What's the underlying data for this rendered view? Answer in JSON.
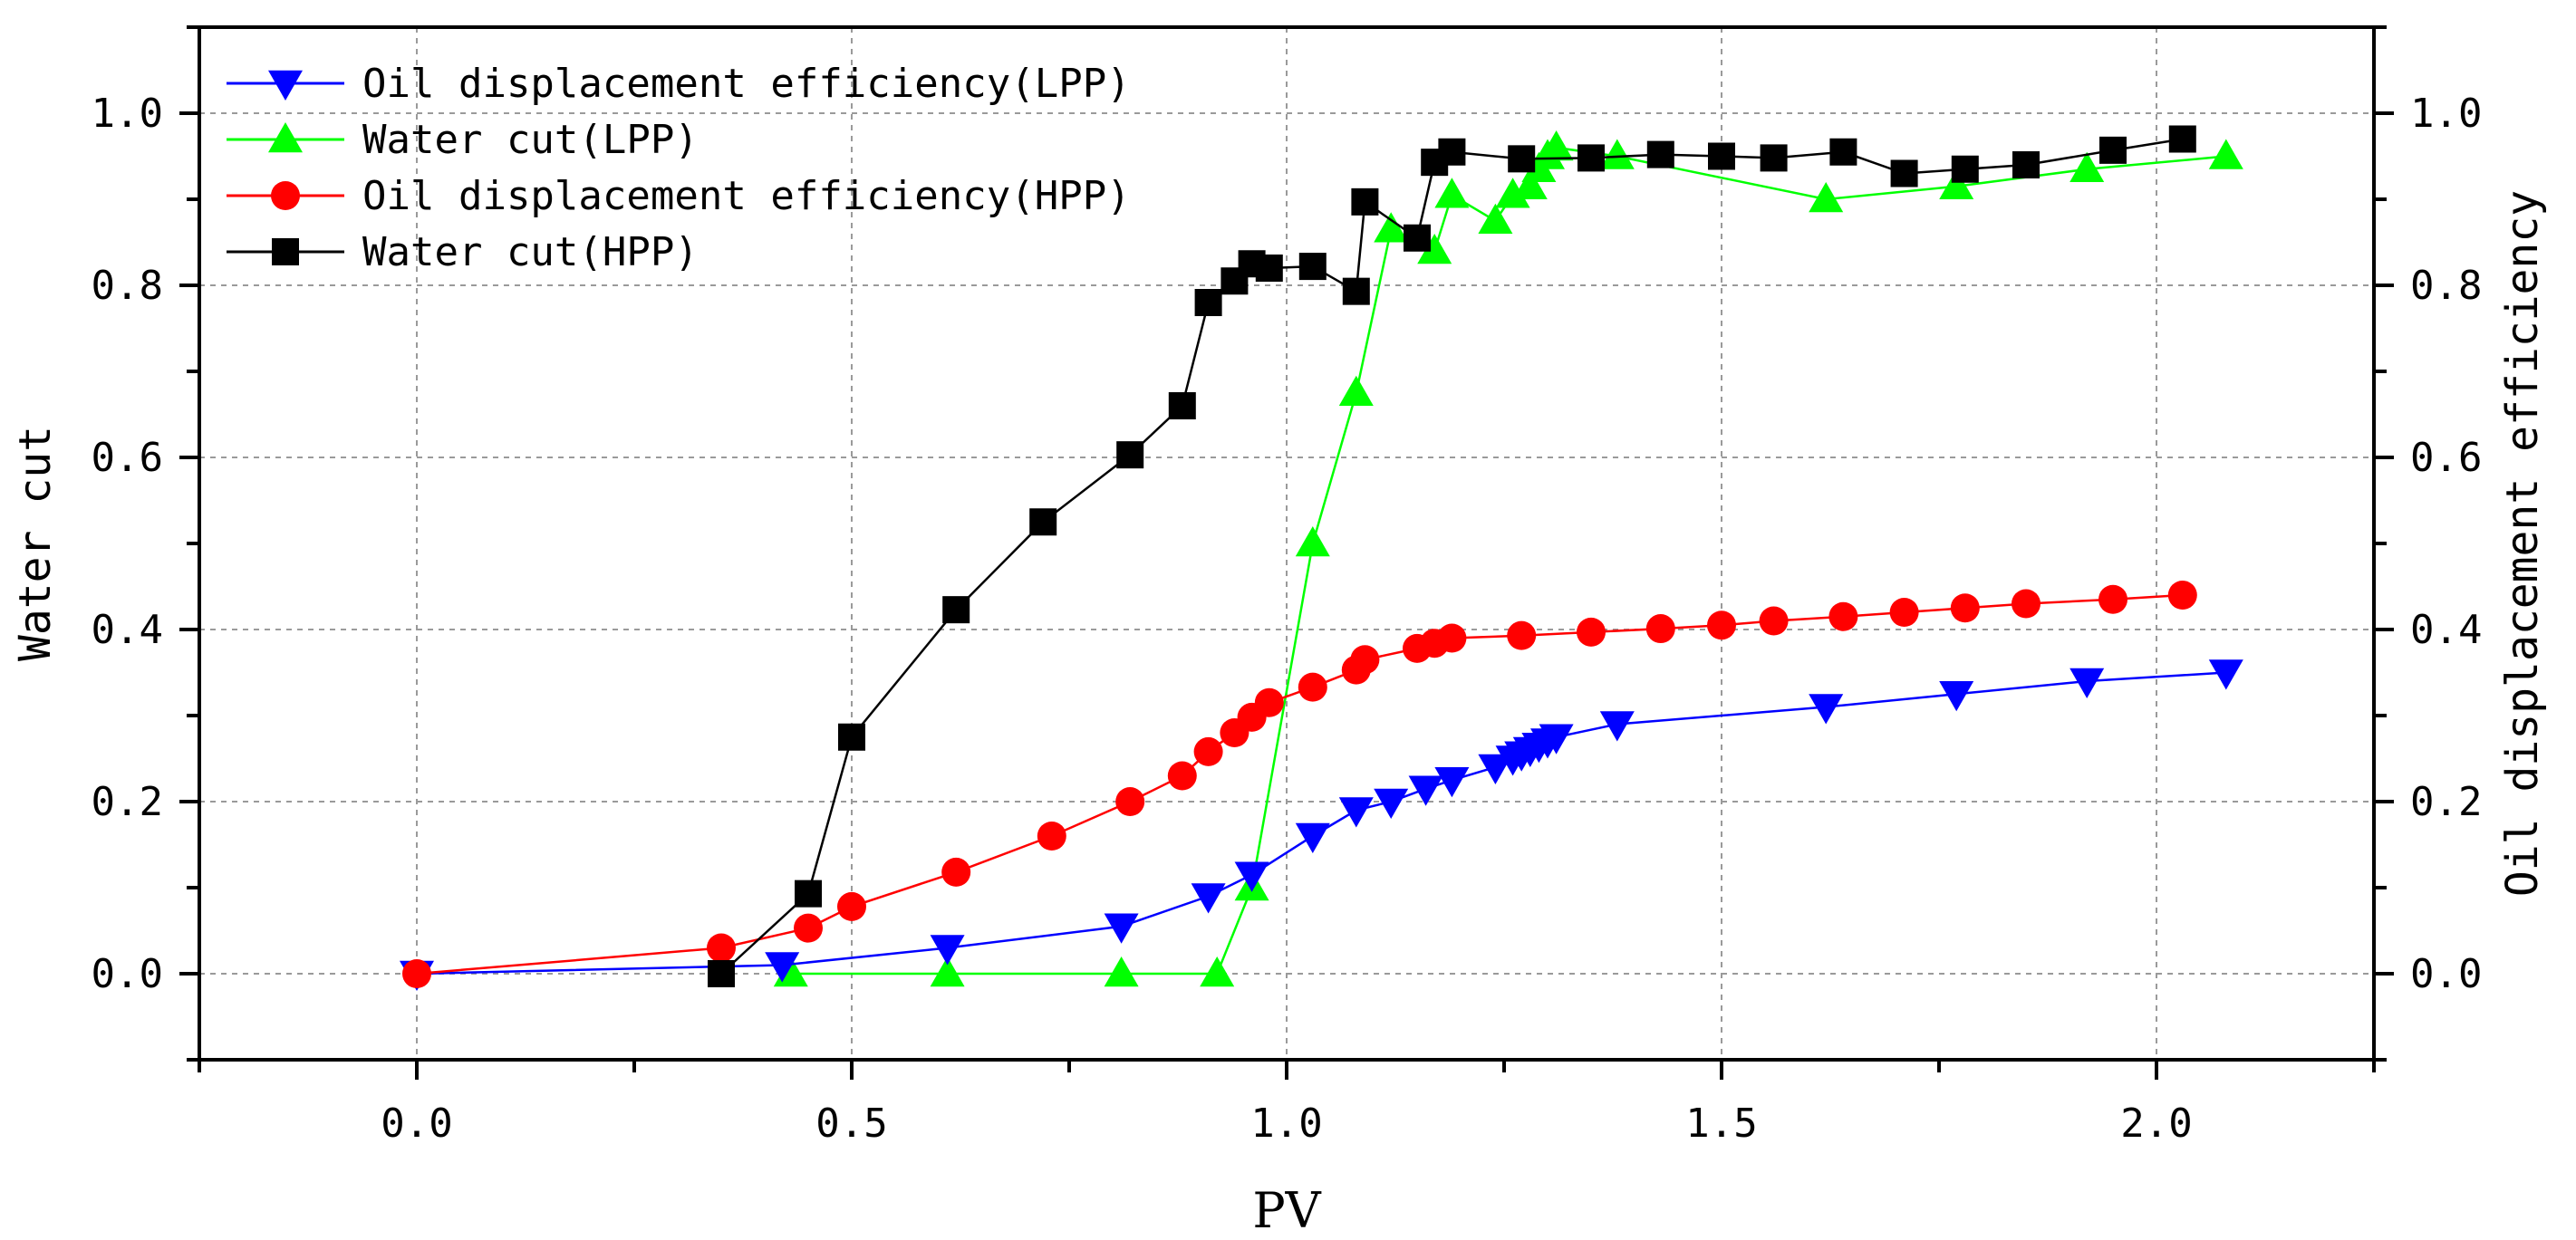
{
  "chart_data": {
    "type": "line",
    "title": "",
    "xlabel": "PV",
    "ylabel": "Water cut",
    "ylabel_right": "Oil displacement efficiency",
    "xlim": [
      -0.25,
      2.25
    ],
    "ylim": [
      -0.1,
      1.1
    ],
    "x_ticks": [
      0.0,
      0.5,
      1.0,
      1.5,
      2.0
    ],
    "x_tick_labels": [
      "0.0",
      "0.5",
      "1.0",
      "1.5",
      "2.0"
    ],
    "y_ticks": [
      0.0,
      0.2,
      0.4,
      0.6,
      0.8,
      1.0
    ],
    "y_tick_labels": [
      "0.0",
      "0.2",
      "0.4",
      "0.6",
      "0.8",
      "1.0"
    ],
    "grid": true,
    "legend_position": "top-left",
    "series": [
      {
        "name": "Oil displacement efficiency(LPP)",
        "color": "#0000ff",
        "marker": "triangle-down",
        "axis": "right",
        "x": [
          0.0,
          0.42,
          0.61,
          0.81,
          0.91,
          0.96,
          1.03,
          1.08,
          1.12,
          1.16,
          1.19,
          1.24,
          1.26,
          1.27,
          1.28,
          1.29,
          1.3,
          1.31,
          1.38,
          1.62,
          1.77,
          1.92,
          2.08
        ],
        "values": [
          0.0,
          0.01,
          0.03,
          0.055,
          0.09,
          0.115,
          0.16,
          0.19,
          0.2,
          0.215,
          0.225,
          0.24,
          0.25,
          0.255,
          0.26,
          0.265,
          0.27,
          0.275,
          0.29,
          0.31,
          0.325,
          0.34,
          0.35
        ]
      },
      {
        "name": "Water cut(LPP)",
        "color": "#00ff00",
        "marker": "triangle-up",
        "axis": "left",
        "x": [
          0.43,
          0.61,
          0.81,
          0.92,
          0.96,
          1.03,
          1.08,
          1.12,
          1.17,
          1.19,
          1.24,
          1.26,
          1.28,
          1.29,
          1.3,
          1.31,
          1.38,
          1.62,
          1.77,
          1.92,
          2.08
        ],
        "values": [
          0.0,
          0.0,
          0.0,
          0.0,
          0.1,
          0.5,
          0.675,
          0.865,
          0.84,
          0.905,
          0.875,
          0.905,
          0.915,
          0.935,
          0.95,
          0.96,
          0.95,
          0.9,
          0.915,
          0.935,
          0.95
        ]
      },
      {
        "name": "Oil displacement efficiency(HPP)",
        "color": "#ff0000",
        "marker": "circle",
        "axis": "right",
        "x": [
          0.0,
          0.35,
          0.45,
          0.5,
          0.62,
          0.73,
          0.82,
          0.88,
          0.91,
          0.94,
          0.96,
          0.98,
          1.03,
          1.08,
          1.09,
          1.15,
          1.17,
          1.19,
          1.27,
          1.35,
          1.43,
          1.5,
          1.56,
          1.64,
          1.71,
          1.78,
          1.85,
          1.95,
          2.03
        ],
        "values": [
          0.0,
          0.03,
          0.053,
          0.078,
          0.118,
          0.16,
          0.2,
          0.23,
          0.258,
          0.28,
          0.298,
          0.315,
          0.333,
          0.353,
          0.365,
          0.378,
          0.384,
          0.39,
          0.393,
          0.397,
          0.401,
          0.405,
          0.41,
          0.415,
          0.42,
          0.425,
          0.43,
          0.435,
          0.44
        ]
      },
      {
        "name": "Water cut(HPP)",
        "color": "#000000",
        "marker": "square",
        "axis": "left",
        "x": [
          0.35,
          0.45,
          0.5,
          0.62,
          0.72,
          0.82,
          0.88,
          0.91,
          0.94,
          0.96,
          0.98,
          1.03,
          1.08,
          1.09,
          1.15,
          1.17,
          1.19,
          1.27,
          1.35,
          1.43,
          1.5,
          1.56,
          1.64,
          1.71,
          1.78,
          1.85,
          1.95,
          2.03
        ],
        "values": [
          0.0,
          0.093,
          0.275,
          0.423,
          0.525,
          0.603,
          0.66,
          0.78,
          0.805,
          0.825,
          0.82,
          0.822,
          0.793,
          0.897,
          0.855,
          0.943,
          0.955,
          0.947,
          0.948,
          0.952,
          0.95,
          0.948,
          0.955,
          0.93,
          0.935,
          0.94,
          0.957,
          0.97
        ]
      }
    ]
  }
}
